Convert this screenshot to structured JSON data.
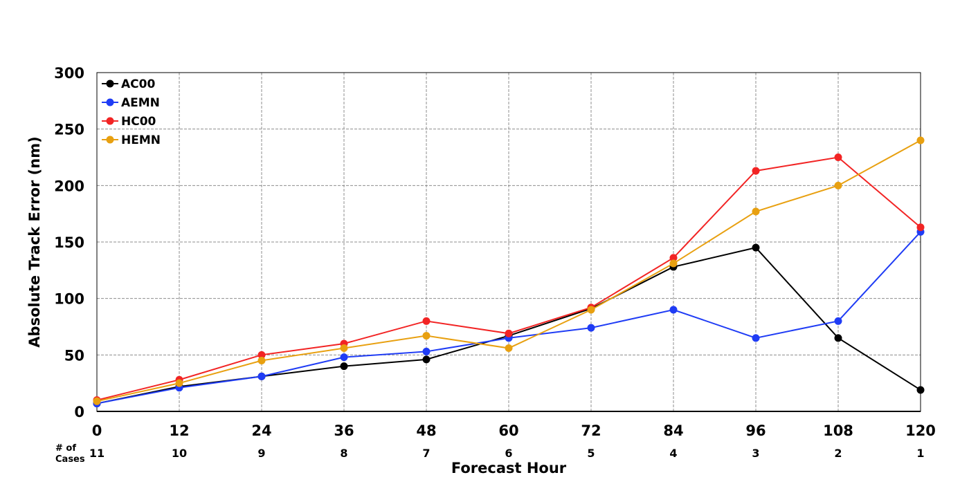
{
  "chart_data": {
    "type": "line",
    "title": "",
    "xlabel": "Forecast Hour",
    "ylabel": "Absolute Track Error (nm)",
    "x": [
      0,
      12,
      24,
      36,
      48,
      60,
      72,
      84,
      96,
      108,
      120
    ],
    "xlim": [
      0,
      120
    ],
    "ylim": [
      0,
      300
    ],
    "yticks": [
      0,
      50,
      100,
      150,
      200,
      250,
      300
    ],
    "grid": true,
    "legend_position": "top-left",
    "cases_label_line1": "# of",
    "cases_label_line2": "Cases",
    "cases": [
      11,
      10,
      9,
      8,
      7,
      6,
      5,
      4,
      3,
      2,
      1
    ],
    "series": [
      {
        "name": "AC00",
        "color": "#000000",
        "values": [
          7,
          22,
          31,
          40,
          46,
          67,
          91,
          128,
          145,
          65,
          19
        ]
      },
      {
        "name": "AEMN",
        "color": "#1f3cf5",
        "values": [
          7,
          21,
          31,
          48,
          53,
          65,
          74,
          90,
          65,
          80,
          159
        ]
      },
      {
        "name": "HC00",
        "color": "#f22424",
        "values": [
          10,
          28,
          50,
          60,
          80,
          69,
          92,
          136,
          213,
          225,
          163
        ]
      },
      {
        "name": "HEMN",
        "color": "#e8a010",
        "values": [
          9,
          25,
          45,
          56,
          67,
          56,
          90,
          131,
          177,
          200,
          240
        ]
      }
    ]
  }
}
